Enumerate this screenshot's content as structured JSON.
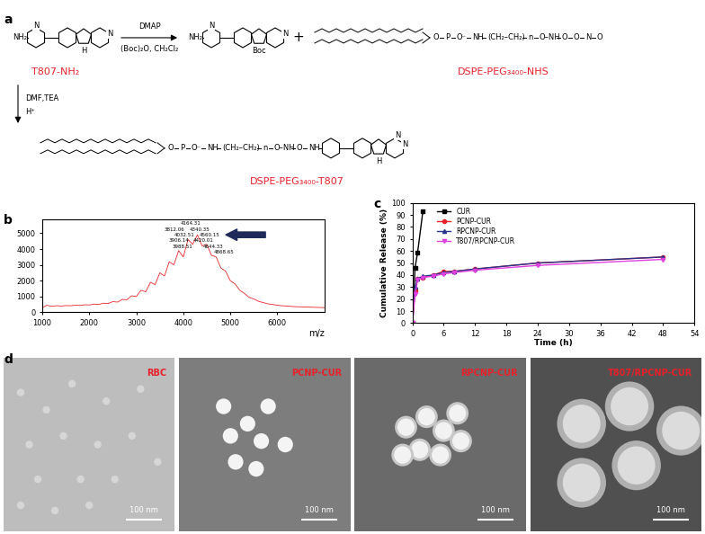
{
  "panel_labels": [
    "a",
    "b",
    "c",
    "d"
  ],
  "scheme": {
    "reactant": "T807-NH₂",
    "reactant_atoms": [
      "NH₂",
      "N",
      "N",
      "H"
    ],
    "step1_reagents": [
      "DMAP",
      "(Boc)₂O, CH₂Cl₂"
    ],
    "intermediate_atoms": [
      "NH₂",
      "N",
      "N",
      "Boc"
    ],
    "plus": "+",
    "reagent": "DSPE-PEG₃₄₀₀-NHS",
    "reagent_linker": [
      "O",
      "P",
      "O⁻",
      "NH",
      "(CH₂–CH₂)",
      "n",
      "O–NH",
      "O",
      "O",
      "N",
      "O"
    ],
    "step2_reagents": [
      "DMF,TEA",
      "H⁺"
    ],
    "product": "DSPE-PEG₃₄₀₀-T807",
    "product_linker": [
      "O",
      "P",
      "O⁻",
      "NH",
      "(CH₂–CH₂)",
      "n",
      "O–NH",
      "O",
      "NH"
    ],
    "product_atoms": [
      "N",
      "N",
      "H"
    ]
  },
  "chart_data": [
    {
      "type": "line",
      "color": "#e8262a",
      "xlabel": "m/z",
      "x": [
        1000,
        1100,
        1200,
        1300,
        1400,
        1500,
        1600,
        1700,
        1800,
        1900,
        2000,
        2100,
        2200,
        2300,
        2400,
        2500,
        2600,
        2700,
        2800,
        2900,
        3000,
        3100,
        3200,
        3300,
        3400,
        3500,
        3600,
        3700,
        3800,
        3900,
        4000,
        4100,
        4200,
        4300,
        4400,
        4500,
        4600,
        4700,
        4800,
        4900,
        5000,
        5100,
        5200,
        5300,
        5400,
        5500,
        5600,
        5700,
        5800,
        5900,
        6000,
        6100,
        6200,
        6300,
        6400,
        6500,
        6600,
        6700,
        6800,
        6900,
        7000
      ],
      "values": [
        300,
        450,
        380,
        420,
        400,
        430,
        420,
        450,
        440,
        480,
        470,
        520,
        500,
        580,
        560,
        680,
        650,
        820,
        800,
        1050,
        1000,
        1400,
        1300,
        1900,
        1750,
        2500,
        2300,
        3200,
        3000,
        3900,
        3500,
        4600,
        4300,
        4900,
        4200,
        4300,
        3600,
        3500,
        2800,
        2600,
        2000,
        1800,
        1400,
        1200,
        950,
        850,
        700,
        620,
        540,
        500,
        450,
        420,
        400,
        380,
        360,
        350,
        340,
        330,
        320,
        310,
        300
      ],
      "xlim": [
        1000,
        7000
      ],
      "xticks": [
        1000,
        2000,
        3000,
        4000,
        5000,
        6000
      ],
      "ylim": [
        0,
        5900
      ],
      "yticks": [
        0,
        1000,
        2000,
        3000,
        4000,
        5000
      ],
      "peaks": [
        {
          "mz": 3812.06,
          "intensity": 5090,
          "label": "3812.06"
        },
        {
          "mz": 3906.14,
          "intensity": 4370,
          "label": "3906.14"
        },
        {
          "mz": 3988.51,
          "intensity": 4010,
          "label": "3988.51"
        },
        {
          "mz": 4032.51,
          "intensity": 4730,
          "label": "4032.51"
        },
        {
          "mz": 4164.31,
          "intensity": 5450,
          "label": "4164.31"
        },
        {
          "mz": 4340.35,
          "intensity": 5090,
          "label": "4340.35"
        },
        {
          "mz": 4420.01,
          "intensity": 4370,
          "label": "4420.01"
        },
        {
          "mz": 4560.15,
          "intensity": 4730,
          "label": "4560.15"
        },
        {
          "mz": 4644.33,
          "intensity": 4010,
          "label": "4644.33"
        },
        {
          "mz": 4868.65,
          "intensity": 3650,
          "label": "4868.65"
        }
      ]
    },
    {
      "type": "line",
      "xlabel": "Time (h)",
      "ylabel": "Cumulative Release (%)",
      "xlim": [
        0,
        54
      ],
      "xticks": [
        0,
        6,
        12,
        18,
        24,
        30,
        36,
        42,
        48,
        54
      ],
      "ylim": [
        0,
        100
      ],
      "yticks": [
        0,
        10,
        20,
        30,
        40,
        50,
        60,
        70,
        80,
        90,
        100
      ],
      "legend": "upper left",
      "series": [
        {
          "name": "CUR",
          "color": "#000000",
          "marker": "square",
          "x": [
            0,
            0.5,
            1,
            2
          ],
          "values": [
            0,
            46,
            59,
            93
          ]
        },
        {
          "name": "PCNP-CUR",
          "color": "#e8202a",
          "marker": "circle",
          "x": [
            0,
            0.5,
            1,
            2,
            4,
            6,
            8,
            12,
            24,
            48
          ],
          "values": [
            0,
            27,
            37,
            38,
            40,
            43,
            43,
            45,
            50,
            55
          ]
        },
        {
          "name": "RPCNP-CUR",
          "color": "#27348b",
          "marker": "triangle",
          "x": [
            0,
            0.5,
            1,
            2,
            4,
            6,
            8,
            12,
            24,
            48
          ],
          "values": [
            0,
            30,
            37,
            39,
            40,
            42,
            43,
            45,
            50,
            55
          ]
        },
        {
          "name": "T807/RPCNP-CUR",
          "color": "#e040e0",
          "marker": "down_triangle",
          "x": [
            0,
            0.5,
            1,
            2,
            4,
            6,
            8,
            12,
            24,
            48
          ],
          "values": [
            0,
            24,
            36,
            38,
            39,
            41,
            42,
            44,
            48,
            53
          ]
        }
      ]
    }
  ],
  "micrographs": [
    {
      "label": "RBC",
      "scale_bar": "100 nm"
    },
    {
      "label": "PCNP-CUR",
      "scale_bar": "100 nm"
    },
    {
      "label": "RPCNP-CUR",
      "scale_bar": "100 nm"
    },
    {
      "label": "T807/RPCNP-CUR",
      "scale_bar": "100 nm"
    }
  ]
}
